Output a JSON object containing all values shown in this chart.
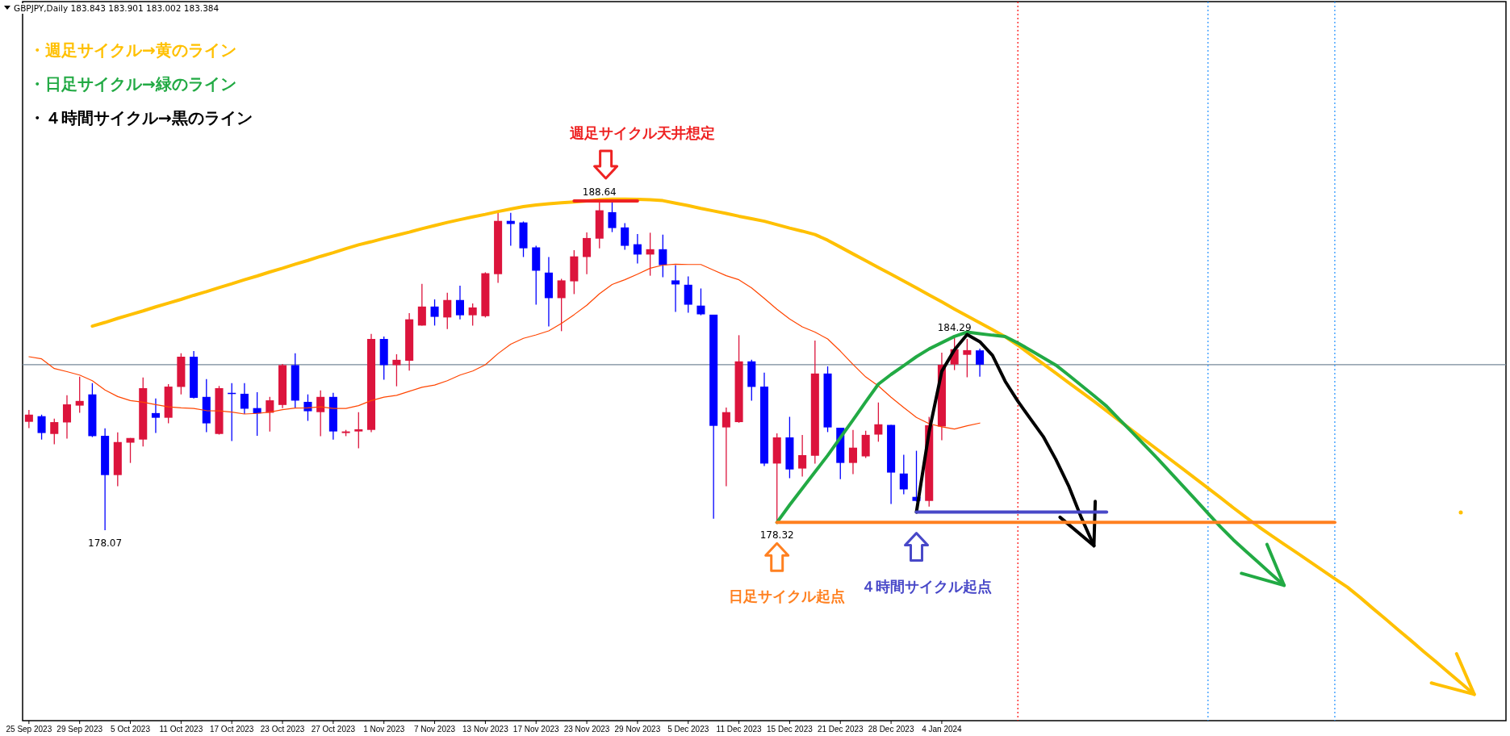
{
  "chart_data": {
    "type": "candlestick",
    "tick_labels": "x",
    "categories": [
      "25 Sep 2023",
      null,
      null,
      null,
      "29 Sep 2023",
      null,
      null,
      null,
      "5 Oct 2023",
      null,
      null,
      null,
      "11 Oct 2023",
      null,
      null,
      null,
      "17 Oct 2023",
      null,
      null,
      null,
      "23 Oct 2023",
      null,
      null,
      null,
      "27 Oct 2023",
      null,
      null,
      null,
      "1 Nov 2023",
      null,
      null,
      null,
      "7 Nov 2023",
      null,
      null,
      null,
      "13 Nov 2023",
      null,
      null,
      null,
      "17 Nov 2023",
      null,
      null,
      null,
      "23 Nov 2023",
      null,
      null,
      null,
      "29 Nov 2023",
      null,
      null,
      null,
      "5 Dec 2023",
      null,
      null,
      null,
      "11 Dec 2023",
      null,
      null,
      null,
      "15 Dec 2023",
      null,
      null,
      null,
      "21 Dec 2023",
      null,
      null,
      null,
      "28 Dec 2023",
      null,
      null,
      null,
      "4 Jan 2024",
      null,
      null,
      null,
      null,
      null,
      null,
      null,
      null,
      null,
      null,
      null,
      null,
      null,
      null,
      null,
      null,
      null,
      null,
      null,
      null,
      null,
      null,
      null,
      null,
      null,
      null,
      null,
      null,
      null,
      null,
      null,
      null,
      null,
      null,
      null,
      null,
      null,
      null,
      null,
      null,
      null,
      null,
      null,
      null
    ],
    "ohlc": [
      [
        181.55,
        181.93,
        181.35,
        181.78
      ],
      [
        181.73,
        181.78,
        180.98,
        181.19
      ],
      [
        181.16,
        181.65,
        180.83,
        181.54
      ],
      [
        181.53,
        182.4,
        181.01,
        182.11
      ],
      [
        182.07,
        183.0,
        181.84,
        182.22
      ],
      [
        182.43,
        182.79,
        181.06,
        181.09
      ],
      [
        181.1,
        181.34,
        178.07,
        179.84
      ],
      [
        179.84,
        181.21,
        179.48,
        180.9
      ],
      [
        180.88,
        181.03,
        180.23,
        181.03
      ],
      [
        180.98,
        182.97,
        180.76,
        182.63
      ],
      [
        181.83,
        182.3,
        181.19,
        181.68
      ],
      [
        181.68,
        182.76,
        181.5,
        182.68
      ],
      [
        182.67,
        183.75,
        182.43,
        183.64
      ],
      [
        183.64,
        183.82,
        182.3,
        182.32
      ],
      [
        182.35,
        182.92,
        181.22,
        181.5
      ],
      [
        181.16,
        182.7,
        181.14,
        182.63
      ],
      [
        182.48,
        182.79,
        180.93,
        182.46
      ],
      [
        182.45,
        182.79,
        181.8,
        181.97
      ],
      [
        181.99,
        182.5,
        181.1,
        181.82
      ],
      [
        181.84,
        182.35,
        181.24,
        182.24
      ],
      [
        182.09,
        183.41,
        181.99,
        183.37
      ],
      [
        183.37,
        183.75,
        182.0,
        182.23
      ],
      [
        182.19,
        182.43,
        181.58,
        181.89
      ],
      [
        181.86,
        182.56,
        181.09,
        182.35
      ],
      [
        182.35,
        182.48,
        180.98,
        181.24
      ],
      [
        181.19,
        181.29,
        181.09,
        181.24
      ],
      [
        181.24,
        181.86,
        180.7,
        181.31
      ],
      [
        181.29,
        184.37,
        181.22,
        184.21
      ],
      [
        184.21,
        184.29,
        182.9,
        183.37
      ],
      [
        183.37,
        183.72,
        182.69,
        183.54
      ],
      [
        183.51,
        185.04,
        183.19,
        184.84
      ],
      [
        184.64,
        185.98,
        184.64,
        185.25
      ],
      [
        185.25,
        185.48,
        184.64,
        184.92
      ],
      [
        184.9,
        185.69,
        184.53,
        185.46
      ],
      [
        185.46,
        185.92,
        184.84,
        184.97
      ],
      [
        184.97,
        185.35,
        184.64,
        185.22
      ],
      [
        184.94,
        186.35,
        184.9,
        186.32
      ],
      [
        186.29,
        188.32,
        186.01,
        188.0
      ],
      [
        188.0,
        188.26,
        187.2,
        187.9
      ],
      [
        187.95,
        187.98,
        186.84,
        187.12
      ],
      [
        187.15,
        187.2,
        185.31,
        186.4
      ],
      [
        186.34,
        186.84,
        184.61,
        185.52
      ],
      [
        185.52,
        186.14,
        184.46,
        186.09
      ],
      [
        186.06,
        187.06,
        185.65,
        186.86
      ],
      [
        186.84,
        187.63,
        186.29,
        187.45
      ],
      [
        187.43,
        188.64,
        187.12,
        188.34
      ],
      [
        188.28,
        188.6,
        187.64,
        187.77
      ],
      [
        187.79,
        187.93,
        187.07,
        187.2
      ],
      [
        187.25,
        187.58,
        186.63,
        186.92
      ],
      [
        186.92,
        187.62,
        186.24,
        187.09
      ],
      [
        187.09,
        187.56,
        186.19,
        186.58
      ],
      [
        186.09,
        186.58,
        185.08,
        185.96
      ],
      [
        185.95,
        186.22,
        185.05,
        185.31
      ],
      [
        185.28,
        185.83,
        184.97,
        185.0
      ],
      [
        184.99,
        184.99,
        178.44,
        181.42
      ],
      [
        181.37,
        182.01,
        179.48,
        181.86
      ],
      [
        181.54,
        184.33,
        181.52,
        183.49
      ],
      [
        183.49,
        183.54,
        182.23,
        182.67
      ],
      [
        182.68,
        183.13,
        180.13,
        180.21
      ],
      [
        180.21,
        181.18,
        178.32,
        181.05
      ],
      [
        181.05,
        181.71,
        179.74,
        180.02
      ],
      [
        180.05,
        181.13,
        179.79,
        180.48
      ],
      [
        180.46,
        184.16,
        180.21,
        183.1
      ],
      [
        183.1,
        183.33,
        181.22,
        181.37
      ],
      [
        181.36,
        181.36,
        179.71,
        180.23
      ],
      [
        180.23,
        181.29,
        179.87,
        180.72
      ],
      [
        180.44,
        181.26,
        180.39,
        181.13
      ],
      [
        181.14,
        182.17,
        180.91,
        181.47
      ],
      [
        181.45,
        181.45,
        178.91,
        179.92
      ],
      [
        179.89,
        180.49,
        179.22,
        179.38
      ],
      [
        179.14,
        180.62,
        178.99,
        179.01
      ],
      [
        179.01,
        181.71,
        178.83,
        181.44
      ],
      [
        181.4,
        183.77,
        180.96,
        183.38
      ],
      [
        183.39,
        184.29,
        183.21,
        183.88
      ],
      [
        183.7,
        184.21,
        182.98,
        183.85
      ],
      [
        183.843,
        183.901,
        183.002,
        183.384
      ],
      null,
      null,
      null,
      null,
      null,
      null,
      null,
      null,
      null,
      null,
      null,
      null,
      null,
      null,
      null,
      null,
      null,
      null,
      null,
      null,
      null,
      null,
      null,
      null,
      null,
      null,
      null,
      null,
      null,
      null,
      null,
      null,
      null,
      null,
      null,
      null,
      null,
      null,
      null,
      null,
      null
    ],
    "colors": [
      "#dc143c",
      "#0000ff",
      "#dc143c",
      "#dc143c",
      "#dc143c",
      "#0000ff",
      "#0000ff",
      "#dc143c",
      "#dc143c",
      "#dc143c",
      "#0000ff",
      "#dc143c",
      "#dc143c",
      "#0000ff",
      "#0000ff",
      "#dc143c",
      "#0000ff",
      "#0000ff",
      "#0000ff",
      "#dc143c",
      "#dc143c",
      "#0000ff",
      "#0000ff",
      "#dc143c",
      "#0000ff",
      "#dc143c",
      "#dc143c",
      "#dc143c",
      "#0000ff",
      "#dc143c",
      "#dc143c",
      "#dc143c",
      "#0000ff",
      "#dc143c",
      "#0000ff",
      "#dc143c",
      "#dc143c",
      "#dc143c",
      "#0000ff",
      "#0000ff",
      "#0000ff",
      "#0000ff",
      "#dc143c",
      "#dc143c",
      "#dc143c",
      "#dc143c",
      "#0000ff",
      "#0000ff",
      "#0000ff",
      "#dc143c",
      "#0000ff",
      "#0000ff",
      "#0000ff",
      "#0000ff",
      "#0000ff",
      "#dc143c",
      "#dc143c",
      "#0000ff",
      "#0000ff",
      "#dc143c",
      "#0000ff",
      "#dc143c",
      "#dc143c",
      "#0000ff",
      "#0000ff",
      "#dc143c",
      "#dc143c",
      "#dc143c",
      "#0000ff",
      "#0000ff",
      "#0000ff",
      "#dc143c",
      "#dc143c",
      "#dc143c",
      "#dc143c",
      "#0000ff",
      null,
      null,
      null,
      null,
      null,
      null,
      null,
      null,
      null,
      null,
      null,
      null,
      null,
      null,
      null,
      null,
      null,
      null,
      null,
      null,
      null,
      null,
      null,
      null,
      null,
      null,
      null,
      null,
      null,
      null,
      null,
      null,
      null,
      null,
      null,
      null,
      null,
      null,
      null,
      null,
      null
    ],
    "series": [
      {
        "type": "line",
        "color": "#ff4500",
        "values": [
          183.64,
          183.57,
          183.26,
          183.16,
          183.05,
          182.87,
          182.57,
          182.36,
          182.23,
          182.18,
          182.1,
          182.03,
          182.0,
          181.98,
          181.91,
          181.9,
          181.86,
          181.8,
          181.82,
          181.86,
          181.94,
          181.99,
          182.0,
          182.03,
          181.98,
          181.98,
          182.07,
          182.23,
          182.34,
          182.4,
          182.53,
          182.66,
          182.73,
          182.87,
          183.05,
          183.18,
          183.38,
          183.74,
          184.04,
          184.23,
          184.34,
          184.47,
          184.71,
          184.99,
          185.29,
          185.66,
          185.96,
          186.11,
          186.29,
          186.48,
          186.58,
          186.61,
          186.6,
          186.6,
          186.42,
          186.24,
          186.11,
          185.85,
          185.51,
          185.16,
          184.85,
          184.6,
          184.43,
          184.21,
          183.82,
          183.39,
          182.99,
          182.7,
          182.34,
          182.01,
          181.69,
          181.49,
          181.39,
          181.32,
          181.42,
          181.51,
          null,
          null,
          null,
          null,
          null,
          null,
          null,
          null,
          null,
          null,
          null,
          null,
          null,
          null,
          null,
          null,
          null,
          null,
          null,
          null,
          null,
          null,
          null,
          null,
          null,
          null,
          null,
          null,
          null,
          null,
          null,
          null,
          null,
          null,
          null,
          null,
          null,
          null,
          null,
          null,
          null
        ]
      },
      {
        "type": "line",
        "color": "#ffc000",
        "values": [
          null,
          null,
          null,
          null,
          null,
          184.62,
          184.74,
          184.87,
          184.99,
          185.11,
          185.24,
          185.36,
          185.48,
          185.61,
          185.73,
          185.86,
          185.98,
          186.11,
          186.23,
          186.36,
          186.48,
          186.61,
          186.73,
          186.86,
          186.98,
          187.11,
          187.23,
          187.33,
          187.44,
          187.54,
          187.64,
          187.75,
          187.85,
          187.95,
          188.04,
          188.13,
          188.21,
          188.3,
          188.38,
          188.46,
          188.51,
          188.55,
          188.58,
          188.61,
          188.64,
          188.68,
          188.7,
          188.7,
          188.69,
          188.68,
          188.65,
          188.57,
          188.49,
          188.4,
          188.32,
          188.24,
          188.15,
          188.07,
          187.99,
          187.88,
          187.77,
          187.67,
          187.56,
          187.38,
          187.16,
          186.94,
          186.72,
          186.5,
          186.29,
          186.07,
          185.85,
          185.62,
          185.4,
          185.17,
          184.95,
          184.73,
          184.51,
          184.28,
          184.01,
          183.71,
          183.41,
          183.11,
          182.81,
          182.51,
          182.21,
          181.9,
          181.59,
          181.28,
          180.97,
          180.66,
          180.35,
          180.04,
          179.73,
          179.42,
          179.11,
          178.79,
          178.48,
          178.18,
          177.9,
          177.62,
          177.35,
          177.07,
          176.79,
          176.51,
          176.24,
          175.91,
          175.56,
          175.22,
          174.87,
          174.53,
          174.18,
          173.84,
          173.49,
          173.15,
          172.8,
          null,
          null
        ]
      },
      {
        "type": "line",
        "color": "#22aa44",
        "values": [
          null,
          null,
          null,
          null,
          null,
          null,
          null,
          null,
          null,
          null,
          null,
          null,
          null,
          null,
          null,
          null,
          null,
          null,
          null,
          null,
          null,
          null,
          null,
          null,
          null,
          null,
          null,
          null,
          null,
          null,
          null,
          null,
          null,
          null,
          null,
          null,
          null,
          null,
          null,
          null,
          null,
          null,
          null,
          null,
          null,
          null,
          null,
          null,
          null,
          null,
          null,
          null,
          null,
          null,
          null,
          null,
          null,
          null,
          null,
          178.32,
          178.88,
          179.41,
          179.94,
          180.47,
          181.04,
          181.61,
          182.19,
          182.76,
          183.07,
          183.35,
          183.64,
          183.89,
          184.09,
          184.29,
          184.43,
          184.38,
          184.33,
          184.29,
          184.08,
          183.85,
          183.61,
          183.37,
          183.05,
          182.72,
          182.39,
          182.05,
          181.63,
          181.22,
          180.8,
          180.38,
          179.94,
          179.5,
          179.06,
          178.61,
          178.17,
          177.76,
          177.39,
          177.03,
          176.66,
          176.3,
          null,
          null,
          null,
          null,
          null,
          null,
          null,
          null,
          null,
          null,
          null,
          null,
          null,
          null,
          null,
          null,
          null
        ]
      },
      {
        "type": "line",
        "color": "#000000",
        "values": [
          null,
          null,
          null,
          null,
          null,
          null,
          null,
          null,
          null,
          null,
          null,
          null,
          null,
          null,
          null,
          null,
          null,
          null,
          null,
          null,
          null,
          null,
          null,
          null,
          null,
          null,
          null,
          null,
          null,
          null,
          null,
          null,
          null,
          null,
          null,
          null,
          null,
          null,
          null,
          null,
          null,
          null,
          null,
          null,
          null,
          null,
          null,
          null,
          null,
          null,
          null,
          null,
          null,
          null,
          null,
          null,
          null,
          null,
          null,
          null,
          null,
          null,
          null,
          null,
          null,
          null,
          null,
          null,
          null,
          null,
          178.65,
          181.23,
          183.17,
          183.86,
          184.35,
          184.12,
          183.68,
          182.85,
          182.21,
          181.64,
          181.08,
          180.34,
          179.5,
          178.48,
          177.57,
          null,
          null,
          null,
          null,
          null,
          null,
          null,
          null,
          null,
          null,
          null,
          null,
          null,
          null,
          null,
          null,
          null,
          null,
          null,
          null,
          null,
          null,
          null,
          null,
          null,
          null,
          null,
          null,
          null,
          null,
          null,
          null
        ]
      },
      {
        "type": "line",
        "color": "#ee2222",
        "values": [
          null,
          null,
          null,
          null,
          null,
          null,
          null,
          null,
          null,
          null,
          null,
          null,
          null,
          null,
          null,
          null,
          null,
          null,
          null,
          null,
          null,
          null,
          null,
          null,
          null,
          null,
          null,
          null,
          null,
          null,
          null,
          null,
          null,
          null,
          null,
          null,
          null,
          null,
          null,
          null,
          null,
          null,
          null,
          188.64,
          188.64,
          188.64,
          188.64,
          188.64,
          188.64,
          null,
          null,
          null,
          null,
          null,
          null,
          null,
          null,
          null,
          null,
          null,
          null,
          null,
          null,
          null,
          null,
          null,
          null,
          null,
          null,
          null,
          null,
          null,
          null,
          null,
          null,
          null,
          null,
          null,
          null,
          null,
          null,
          null,
          null,
          null,
          null,
          null,
          null,
          null,
          null,
          null,
          null,
          null,
          null,
          null,
          null,
          null,
          null,
          null,
          null,
          null,
          null,
          null,
          null,
          null,
          null,
          null,
          null,
          null,
          null,
          null,
          null,
          null,
          null,
          null,
          null,
          null,
          null
        ]
      },
      {
        "type": "line",
        "color": "#ff8020",
        "values": [
          null,
          null,
          null,
          null,
          null,
          null,
          null,
          null,
          null,
          null,
          null,
          null,
          null,
          null,
          null,
          null,
          null,
          null,
          null,
          null,
          null,
          null,
          null,
          null,
          null,
          null,
          null,
          null,
          null,
          null,
          null,
          null,
          null,
          null,
          null,
          null,
          null,
          null,
          null,
          null,
          null,
          null,
          null,
          null,
          null,
          null,
          null,
          null,
          null,
          null,
          null,
          null,
          null,
          null,
          null,
          null,
          null,
          null,
          null,
          178.32,
          178.32,
          178.32,
          178.32,
          178.32,
          178.32,
          178.32,
          178.32,
          178.32,
          178.32,
          178.32,
          178.32,
          178.32,
          178.32,
          178.32,
          178.32,
          178.32,
          178.32,
          178.32,
          178.32,
          178.32,
          178.32,
          178.32,
          178.32,
          178.32,
          178.32,
          178.32,
          178.32,
          178.32,
          178.32,
          178.32,
          178.32,
          178.32,
          178.32,
          178.32,
          178.32,
          178.32,
          178.32,
          178.32,
          178.32,
          178.32,
          178.32,
          178.32,
          178.32,
          178.32,
          null,
          null,
          null,
          null,
          null,
          null,
          null,
          null,
          null,
          null,
          null,
          null,
          null
        ]
      },
      {
        "type": "line",
        "color": "#4848c8",
        "values": [
          null,
          null,
          null,
          null,
          null,
          null,
          null,
          null,
          null,
          null,
          null,
          null,
          null,
          null,
          null,
          null,
          null,
          null,
          null,
          null,
          null,
          null,
          null,
          null,
          null,
          null,
          null,
          null,
          null,
          null,
          null,
          null,
          null,
          null,
          null,
          null,
          null,
          null,
          null,
          null,
          null,
          null,
          null,
          null,
          null,
          null,
          null,
          null,
          null,
          null,
          null,
          null,
          null,
          null,
          null,
          null,
          null,
          null,
          null,
          null,
          null,
          null,
          null,
          null,
          null,
          null,
          null,
          null,
          null,
          null,
          178.65,
          178.65,
          178.65,
          178.65,
          178.65,
          178.65,
          178.65,
          178.65,
          178.65,
          178.65,
          178.65,
          178.65,
          178.65,
          178.65,
          178.65,
          178.65,
          null,
          null,
          null,
          null,
          null,
          null,
          null,
          null,
          null,
          null,
          null,
          null,
          null,
          null,
          null,
          null,
          null,
          null,
          null,
          null,
          null,
          null,
          null,
          null,
          null,
          null,
          null,
          null,
          null,
          null,
          null
        ]
      }
    ],
    "ref_lines": [
      {
        "axis": "y",
        "value": 183.384,
        "color": "#778899",
        "line_style": "solid"
      }
    ],
    "annotations": [
      "GBPJPY,Daily  183.843 183.901 183.002 183.384",
      "・週足サイクル→黄のライン",
      "・日足サイクル→緑のライン",
      "・４時間サイクル→黒のライン",
      "週足サイクル天井想定",
      "日足サイクル起点",
      "４時間サイクル起点",
      {
        "text": "188.64",
        "y": 188.64
      },
      {
        "text": "184.29",
        "y": 184.29
      },
      {
        "text": "178.07",
        "y": 178.07
      },
      {
        "text": "178.32",
        "y": 178.32
      }
    ]
  }
}
